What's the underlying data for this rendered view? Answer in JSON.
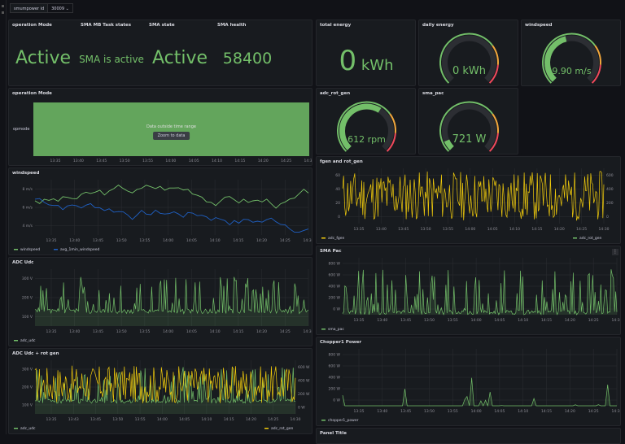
{
  "variable": {
    "name": "smumpower id",
    "value": "30009",
    "chevron": "chevron-down-icon"
  },
  "colors": {
    "green": "#73bf69",
    "yellow": "#f2cc0c",
    "blue": "#1f60c4",
    "bg": "#181b1f",
    "grid": "#2c2e33",
    "axis": "#8e8e96"
  },
  "time_ticks": [
    "13:35",
    "13:40",
    "13:45",
    "13:50",
    "13:55",
    "14:00",
    "14:05",
    "14:10",
    "14:15",
    "14:20",
    "14:25",
    "14:30"
  ],
  "time_ticks_adc2": [
    "13:35",
    "13:43",
    "13:45",
    "13:50",
    "13:55",
    "14:00",
    "14:05",
    "14:10",
    "14:15",
    "14:20",
    "14:25",
    "14:30"
  ],
  "state_panel": {
    "titles": [
      "operation Mode",
      "SMA MB Task states",
      "SMA state",
      "SMA health"
    ],
    "values": [
      "Active",
      "SMA is active",
      "Active",
      "58400"
    ]
  },
  "energy": {
    "title": "total energy",
    "value": "0",
    "unit": "kWh"
  },
  "gauges": [
    {
      "title": "daily energy",
      "value": "0 kWh",
      "fraction": 0.0
    },
    {
      "title": "windspeed",
      "value": "9.90 m/s",
      "fraction": 0.45
    },
    {
      "title": "adc_rot_gen",
      "value": "612 rpm",
      "fraction": 0.62
    },
    {
      "title": "sma_pac",
      "value": "721 W",
      "fraction": 0.08
    }
  ],
  "opmode": {
    "title": "operation Mode",
    "row_label": "opmode",
    "message": "Data outside time range",
    "button": "Zoom to data"
  },
  "charts": [
    {
      "id": "windspeed",
      "title": "windspeed",
      "yticks": [
        "8 m/s",
        "6 m/s",
        "4 m/s"
      ],
      "yticks_right": [],
      "legend": [
        "windspeed",
        "avg_1min_windspeed"
      ]
    },
    {
      "id": "fgen",
      "title": "fgen and rot_gen",
      "yticks": [
        "60",
        "40",
        "20",
        "0"
      ],
      "yticks_right": [
        "600",
        "400",
        "200",
        "0"
      ],
      "legend": [
        "adc_fgen",
        "adc_rot_gen"
      ]
    },
    {
      "id": "adcudc",
      "title": "ADC Udc",
      "yticks": [
        "300 V",
        "200 V",
        "100 V"
      ],
      "yticks_right": [],
      "legend": [
        "adc_udc"
      ]
    },
    {
      "id": "smapac",
      "title": "SMA Pac",
      "yticks": [
        "800 W",
        "600 W",
        "400 W",
        "200 W",
        "0 W"
      ],
      "yticks_right": [],
      "legend": [
        "sma_pac"
      ]
    },
    {
      "id": "adcrot",
      "title": "ADC Udc + rot gen",
      "yticks": [
        "300 V",
        "200 V",
        "100 V"
      ],
      "yticks_right": [
        "600 W",
        "400 W",
        "200 W",
        "0 W"
      ],
      "legend": [
        "adc_udc",
        "adc_rot_gen"
      ]
    },
    {
      "id": "chopper",
      "title": "Chopper1 Power",
      "yticks": [
        "800 W",
        "600 W",
        "400 W",
        "200 W",
        "0 W"
      ],
      "yticks_right": [],
      "legend": [
        "chopper1_power"
      ]
    }
  ],
  "bottom_panel": {
    "title": "Panel Title"
  },
  "panel_menu_icon": "menu-icon"
}
